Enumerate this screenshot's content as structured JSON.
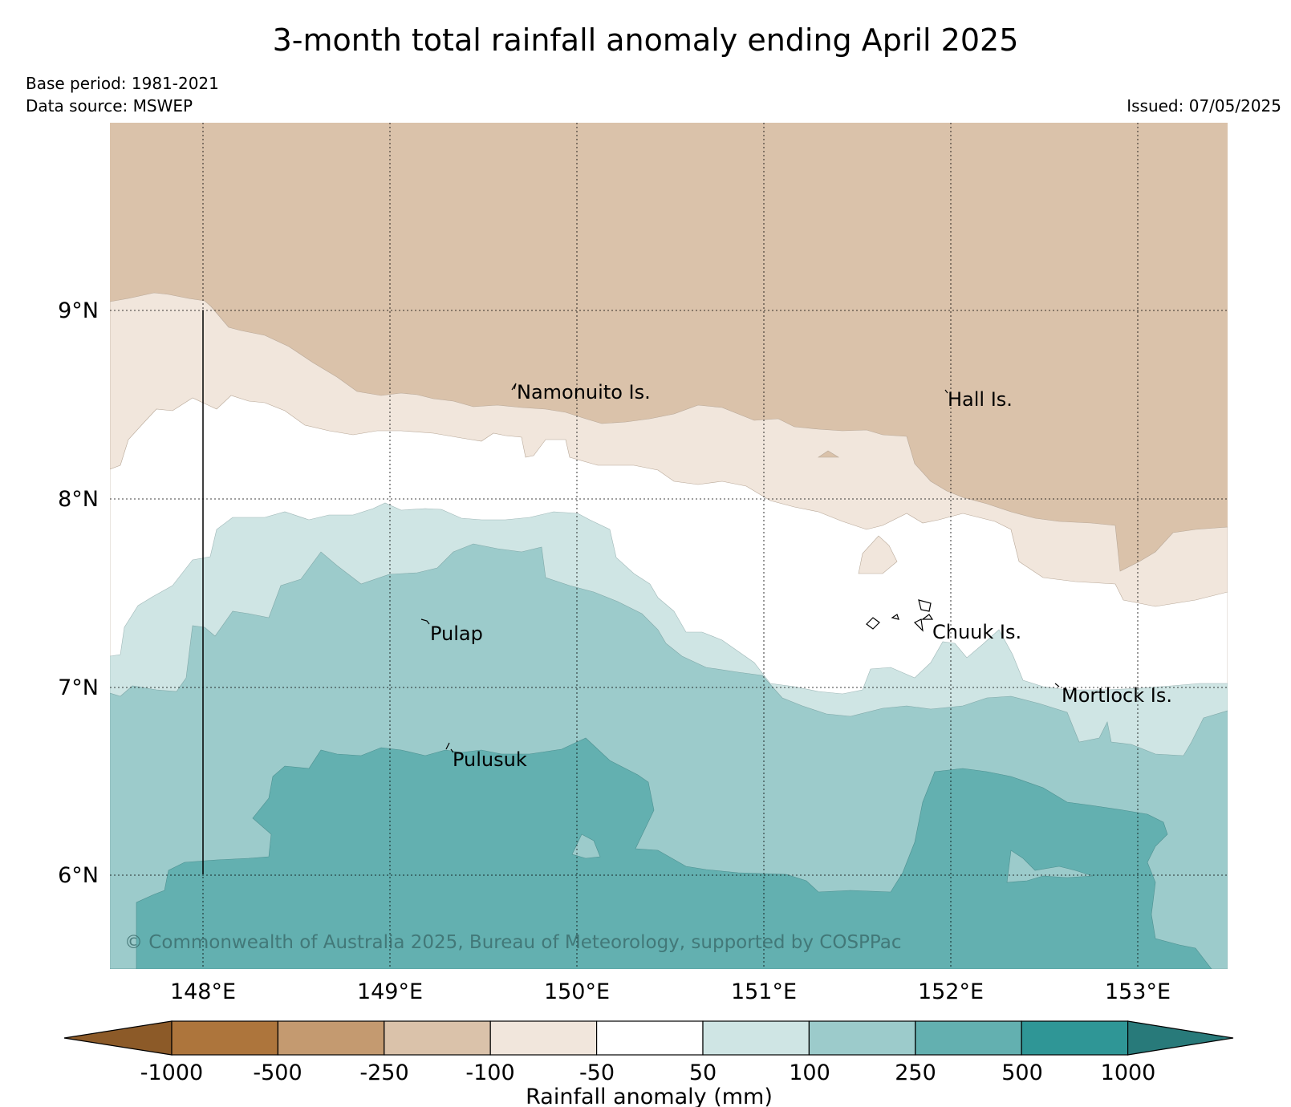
{
  "title": "3-month total rainfall anomaly ending April 2025",
  "base_period": "Base period: 1981-2021",
  "data_source": "Data source: MSWEP",
  "issued": "Issued: 07/05/2025",
  "copyright": "© Commonwealth of Australia 2025, Bureau of Meteorology, supported by COSPPac",
  "map": {
    "lon_labels": [
      "148°E",
      "149°E",
      "150°E",
      "151°E",
      "152°E",
      "153°E"
    ],
    "lat_labels": [
      "9°N",
      "8°N",
      "7°N",
      "6°N"
    ],
    "places": [
      {
        "name": "Namonuito Is."
      },
      {
        "name": "Hall Is."
      },
      {
        "name": "Pulap"
      },
      {
        "name": "Chuuk Is."
      },
      {
        "name": "Mortlock Is."
      },
      {
        "name": "Pulusuk"
      }
    ]
  },
  "colorbar": {
    "label": "Rainfall anomaly (mm)",
    "ticks": [
      "-1000",
      "-500",
      "-250",
      "-100",
      "-50",
      "50",
      "100",
      "250",
      "500",
      "1000"
    ],
    "colors": [
      "#8c5a28",
      "#ad753c",
      "#c49a70",
      "#dac2aa",
      "#f1e6dc",
      "#ffffff",
      "#cfe5e4",
      "#9ccbcb",
      "#63b0b0",
      "#2f9696",
      "#287a7a"
    ]
  }
}
